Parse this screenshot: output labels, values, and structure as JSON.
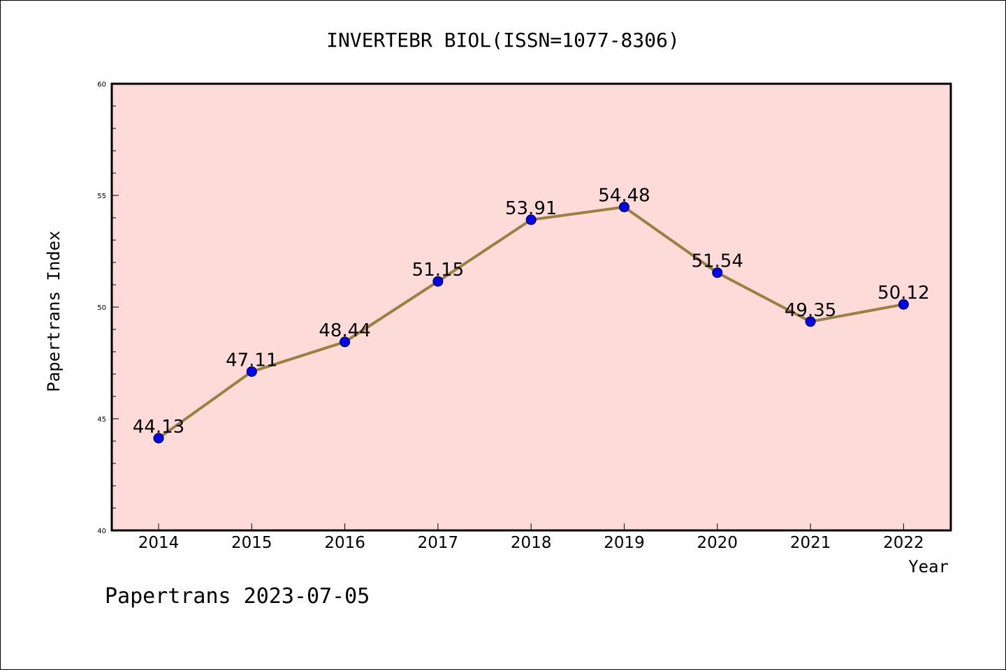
{
  "title": "INVERTEBR BIOL(ISSN=1077-8306)",
  "footer": "Papertrans 2023-07-05",
  "chart_data": {
    "type": "line",
    "title": "INVERTEBR BIOL(ISSN=1077-8306)",
    "xlabel": "Year",
    "ylabel": "Papertrans Index",
    "categories": [
      "2014",
      "2015",
      "2016",
      "2017",
      "2018",
      "2019",
      "2020",
      "2021",
      "2022"
    ],
    "series": [
      {
        "values": [
          44.13,
          47.11,
          48.44,
          51.15,
          53.91,
          54.48,
          51.54,
          49.35,
          50.12
        ],
        "labels": [
          "44.13",
          "47.11",
          "48.44",
          "51.15",
          "53.91",
          "54.48",
          "51.54",
          "49.35",
          "50.12"
        ]
      }
    ],
    "ylim": [
      40,
      60
    ],
    "yticks": [
      "40",
      "45",
      "50",
      "55",
      "60"
    ],
    "grid": false,
    "colors": {
      "plot_background": "#fddbd8",
      "line": "#9b8140",
      "marker": "#0000ff"
    }
  }
}
